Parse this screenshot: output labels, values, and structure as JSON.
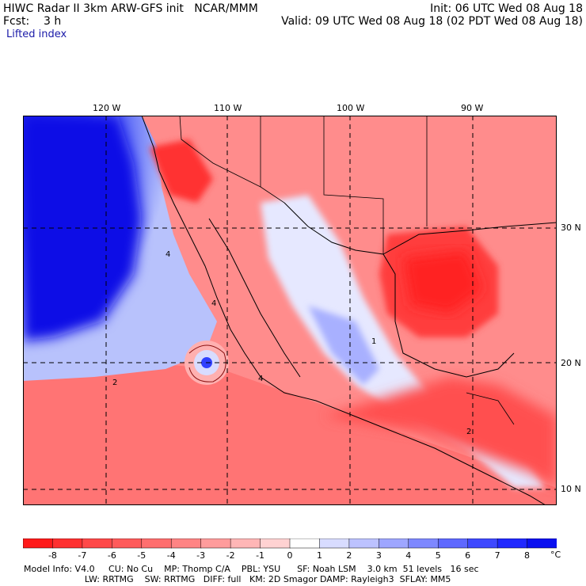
{
  "header": {
    "line1_left": "HIWC Radar II 3km ARW-GFS init   NCAR/MMM",
    "line1_right": "Init: 06 UTC Wed 08 Aug 18",
    "line2_left": "Fcst:    3 h",
    "line2_right": "Valid: 09 UTC Wed 08 Aug 18 (02 PDT Wed 08 Aug 18)",
    "field_name": "Lifted index"
  },
  "axes": {
    "lon_labels": [
      "120 W",
      "110 W",
      "100 W",
      "90 W"
    ],
    "lat_labels": [
      "30 N",
      "20 N",
      "10 N"
    ]
  },
  "colorbar": {
    "ticks": [
      "-8",
      "-7",
      "-6",
      "-5",
      "-4",
      "-3",
      "-2",
      "-1",
      "0",
      "1",
      "2",
      "3",
      "4",
      "5",
      "6",
      "7",
      "8"
    ],
    "unit": "°C",
    "colors": [
      "#ff1a1a",
      "#ff3030",
      "#ff4848",
      "#ff5a5a",
      "#ff6e6e",
      "#ff8484",
      "#ff9c9c",
      "#ffb6b6",
      "#ffd2d2",
      "#ffffff",
      "#d8dcff",
      "#bcc2ff",
      "#9ea6ff",
      "#7e88ff",
      "#5e68ff",
      "#3e48ff",
      "#2028ff",
      "#0a10f0"
    ]
  },
  "contour_labels": [
    "4",
    "4",
    "2",
    "4",
    "1",
    "2"
  ],
  "footer": {
    "line1": "Model Info: V4.0     CU: No Cu    MP: Thomp C/A    PBL: YSU      SF: Noah LSM    3.0 km  51 levels   16 sec",
    "line2": "                      LW: RRTMG    SW: RRTMG   DIFF: full   KM: 2D Smagor DAMP: Rayleigh3  SFLAY: MM5"
  }
}
